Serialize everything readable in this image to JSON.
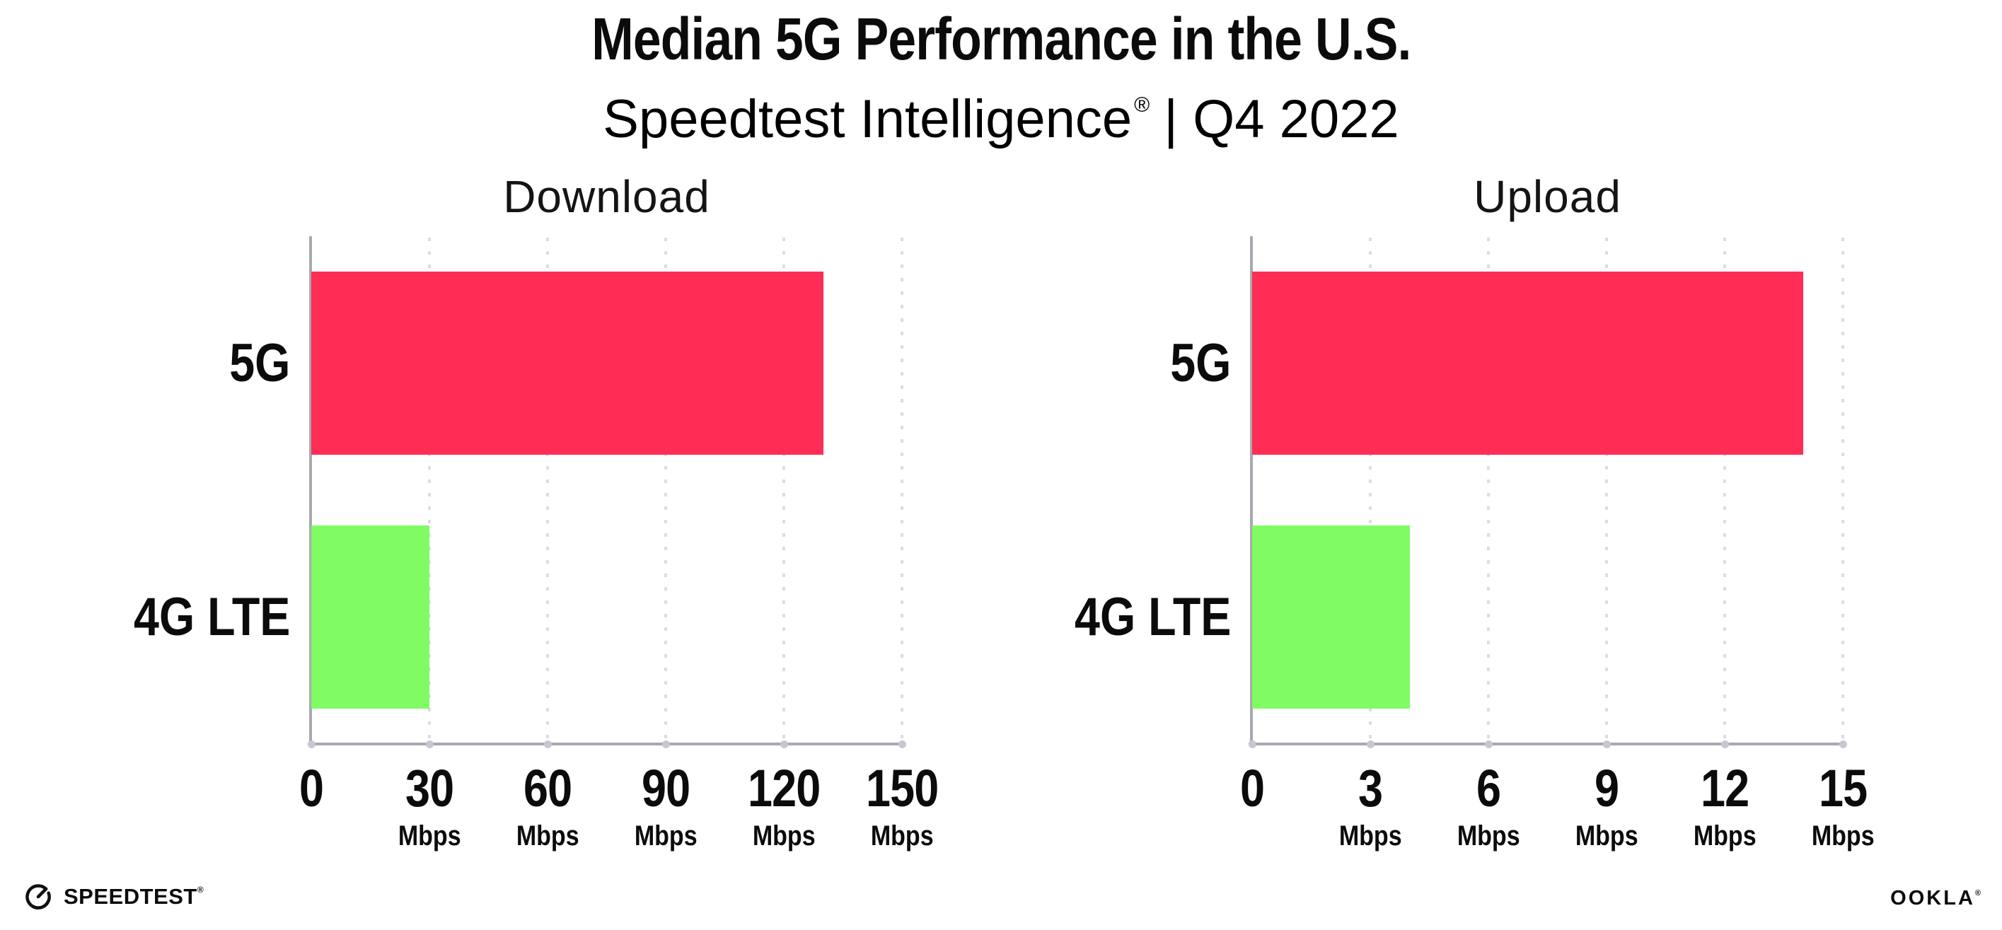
{
  "header": {
    "title": "Median 5G Performance in the U.S.",
    "subtitle_brand": "Speedtest Intelligence",
    "subtitle_registered": "®",
    "subtitle_rest": "| Q4 2022"
  },
  "footer": {
    "speedtest_label": "SPEEDTEST",
    "speedtest_registered": "®",
    "speedtest_icon": "gauge-icon",
    "ookla_label": "OOKLA",
    "ookla_registered": "®"
  },
  "colors": {
    "bar_5g": "#FF2D55",
    "bar_4g_lte": "#80FB63",
    "axis": "#a8a8b0",
    "gridline": "#dcdce6",
    "tick_dot": "#c7c7d2",
    "text": "#0b0b0b"
  },
  "chart_data": [
    {
      "type": "bar",
      "orientation": "horizontal",
      "title": "Download",
      "categories": [
        "5G",
        "4G LTE"
      ],
      "values": [
        130,
        30
      ],
      "unit": "Mbps",
      "xlim": [
        0,
        150
      ],
      "xticks": [
        0,
        30,
        60,
        90,
        120,
        150
      ],
      "bar_colors": [
        "#FF2D55",
        "#80FB63"
      ],
      "grid": "dotted-vertical",
      "legend": "none"
    },
    {
      "type": "bar",
      "orientation": "horizontal",
      "title": "Upload",
      "categories": [
        "5G",
        "4G LTE"
      ],
      "values": [
        14,
        4
      ],
      "unit": "Mbps",
      "xlim": [
        0,
        15
      ],
      "xticks": [
        0,
        3,
        6,
        9,
        12,
        15
      ],
      "bar_colors": [
        "#FF2D55",
        "#80FB63"
      ],
      "grid": "dotted-vertical",
      "legend": "none"
    }
  ]
}
